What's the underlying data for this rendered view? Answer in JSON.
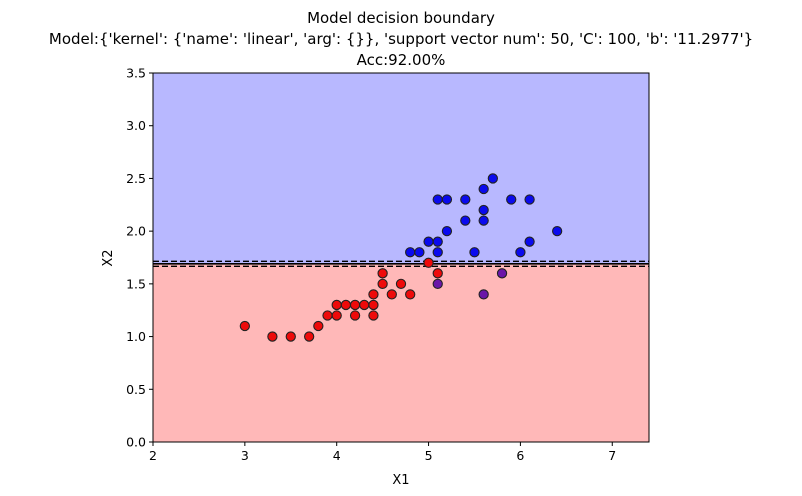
{
  "chart_data": {
    "type": "scatter",
    "title_lines": [
      "Model decision boundary",
      "Model:{'kernel': {'name': 'linear', 'arg': {}}, 'support vector num': 50, 'C': 100, 'b': '11.2977'}",
      "Acc:92.00%"
    ],
    "xlabel": "X1",
    "ylabel": "X2",
    "xlim": [
      2,
      7.4
    ],
    "ylim": [
      0,
      3.5
    ],
    "xticks": [
      2,
      3,
      4,
      5,
      6,
      7
    ],
    "yticks": [
      0.0,
      0.5,
      1.0,
      1.5,
      2.0,
      2.5,
      3.0,
      3.5
    ],
    "ytick_labels": [
      "0.0",
      "0.5",
      "1.0",
      "1.5",
      "2.0",
      "2.5",
      "3.0",
      "3.5"
    ],
    "decision_boundary_y": 1.69,
    "grid": false,
    "regions": {
      "upper_color": "#b8b8ff",
      "lower_color": "#ffb8b8"
    },
    "point_colors": {
      "blue": "#0a0aee",
      "red": "#ee0a0a",
      "purple": "#6a16a8"
    },
    "points": [
      {
        "x": 3.0,
        "y": 1.1,
        "c": "red"
      },
      {
        "x": 3.3,
        "y": 1.0,
        "c": "red"
      },
      {
        "x": 3.5,
        "y": 1.0,
        "c": "red"
      },
      {
        "x": 3.7,
        "y": 1.0,
        "c": "red"
      },
      {
        "x": 3.8,
        "y": 1.1,
        "c": "red"
      },
      {
        "x": 3.9,
        "y": 1.2,
        "c": "red"
      },
      {
        "x": 4.0,
        "y": 1.2,
        "c": "red"
      },
      {
        "x": 4.0,
        "y": 1.3,
        "c": "red"
      },
      {
        "x": 4.1,
        "y": 1.3,
        "c": "red"
      },
      {
        "x": 4.2,
        "y": 1.3,
        "c": "red"
      },
      {
        "x": 4.2,
        "y": 1.2,
        "c": "red"
      },
      {
        "x": 4.3,
        "y": 1.3,
        "c": "red"
      },
      {
        "x": 4.4,
        "y": 1.3,
        "c": "red"
      },
      {
        "x": 4.4,
        "y": 1.2,
        "c": "red"
      },
      {
        "x": 4.4,
        "y": 1.4,
        "c": "red"
      },
      {
        "x": 4.5,
        "y": 1.5,
        "c": "red"
      },
      {
        "x": 4.5,
        "y": 1.6,
        "c": "red"
      },
      {
        "x": 4.6,
        "y": 1.4,
        "c": "red"
      },
      {
        "x": 4.7,
        "y": 1.5,
        "c": "red"
      },
      {
        "x": 4.8,
        "y": 1.4,
        "c": "red"
      },
      {
        "x": 5.0,
        "y": 1.7,
        "c": "red"
      },
      {
        "x": 5.1,
        "y": 1.6,
        "c": "red"
      },
      {
        "x": 5.1,
        "y": 1.5,
        "c": "purple"
      },
      {
        "x": 5.6,
        "y": 1.4,
        "c": "purple"
      },
      {
        "x": 5.8,
        "y": 1.6,
        "c": "purple"
      },
      {
        "x": 4.8,
        "y": 1.8,
        "c": "blue"
      },
      {
        "x": 4.9,
        "y": 1.8,
        "c": "blue"
      },
      {
        "x": 5.0,
        "y": 1.9,
        "c": "blue"
      },
      {
        "x": 5.1,
        "y": 1.9,
        "c": "blue"
      },
      {
        "x": 5.1,
        "y": 1.8,
        "c": "blue"
      },
      {
        "x": 5.1,
        "y": 2.3,
        "c": "blue"
      },
      {
        "x": 5.2,
        "y": 2.3,
        "c": "blue"
      },
      {
        "x": 5.2,
        "y": 2.0,
        "c": "blue"
      },
      {
        "x": 5.4,
        "y": 2.3,
        "c": "blue"
      },
      {
        "x": 5.4,
        "y": 2.1,
        "c": "blue"
      },
      {
        "x": 5.5,
        "y": 1.8,
        "c": "blue"
      },
      {
        "x": 5.6,
        "y": 2.4,
        "c": "blue"
      },
      {
        "x": 5.6,
        "y": 2.2,
        "c": "blue"
      },
      {
        "x": 5.6,
        "y": 2.1,
        "c": "blue"
      },
      {
        "x": 5.7,
        "y": 2.5,
        "c": "blue"
      },
      {
        "x": 5.9,
        "y": 2.3,
        "c": "blue"
      },
      {
        "x": 6.0,
        "y": 1.8,
        "c": "blue"
      },
      {
        "x": 6.1,
        "y": 2.3,
        "c": "blue"
      },
      {
        "x": 6.1,
        "y": 1.9,
        "c": "blue"
      },
      {
        "x": 6.4,
        "y": 2.0,
        "c": "blue"
      }
    ]
  }
}
